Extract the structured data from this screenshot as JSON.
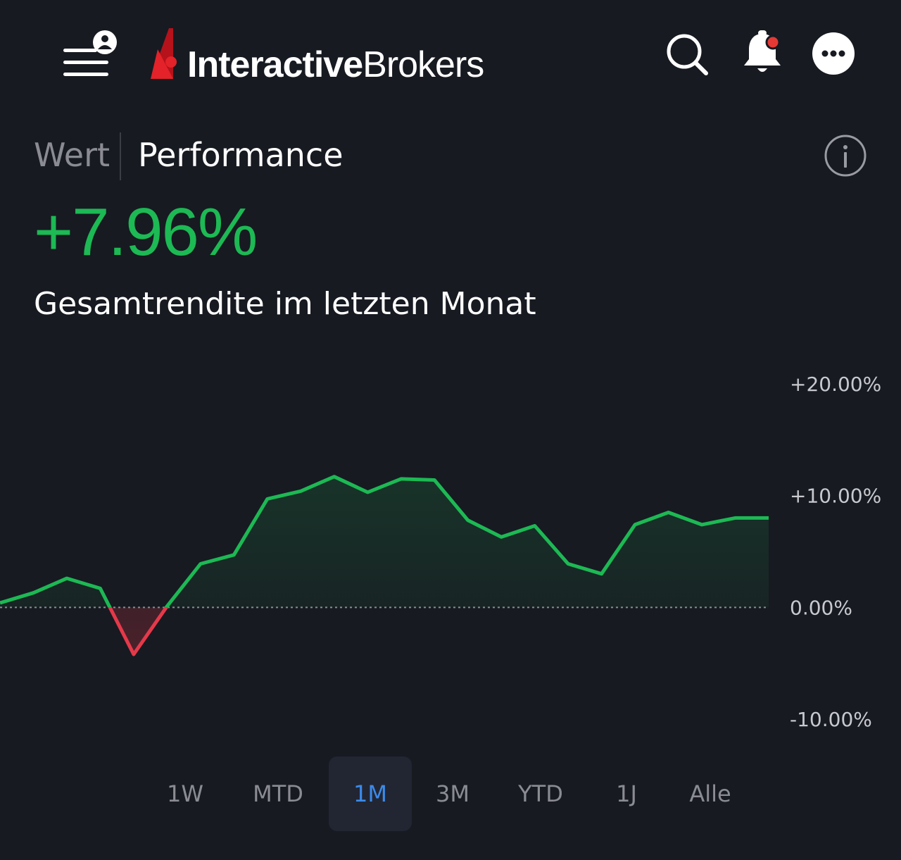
{
  "header": {
    "logo_bold": "Interactive",
    "logo_light": "Brokers",
    "brand_color": "#d71920",
    "icons": [
      "menu-icon",
      "user-icon",
      "search-icon",
      "bell-icon",
      "more-icon"
    ],
    "notification_dot_color": "#e53935"
  },
  "tabs": {
    "wert": "Wert",
    "performance": "Performance",
    "active": "performance"
  },
  "summary": {
    "value": "+7.96%",
    "caption": "Gesamtrendite im letzten Monat",
    "value_color": "#1db954"
  },
  "chart_data": {
    "type": "area",
    "y_tick_labels": [
      "+20.00%",
      "+10.00%",
      "0.00%",
      "-10.00%"
    ],
    "y_ticks": [
      20,
      10,
      0,
      -10
    ],
    "ylim": [
      -10,
      20
    ],
    "baseline": 0,
    "positive_color": "#1db954",
    "negative_color": "#e5394a",
    "grid": false,
    "values": [
      0.4,
      1.3,
      2.6,
      1.7,
      -4.2,
      0.1,
      3.9,
      4.7,
      9.7,
      10.4,
      11.7,
      10.3,
      11.5,
      11.4,
      7.8,
      6.3,
      7.3,
      3.9,
      3.0,
      7.4,
      8.5,
      7.4,
      8.0,
      8.0
    ]
  },
  "ranges": {
    "items": [
      "1W",
      "MTD",
      "1M",
      "3M",
      "YTD",
      "1J",
      "Alle"
    ],
    "active": "1M"
  }
}
